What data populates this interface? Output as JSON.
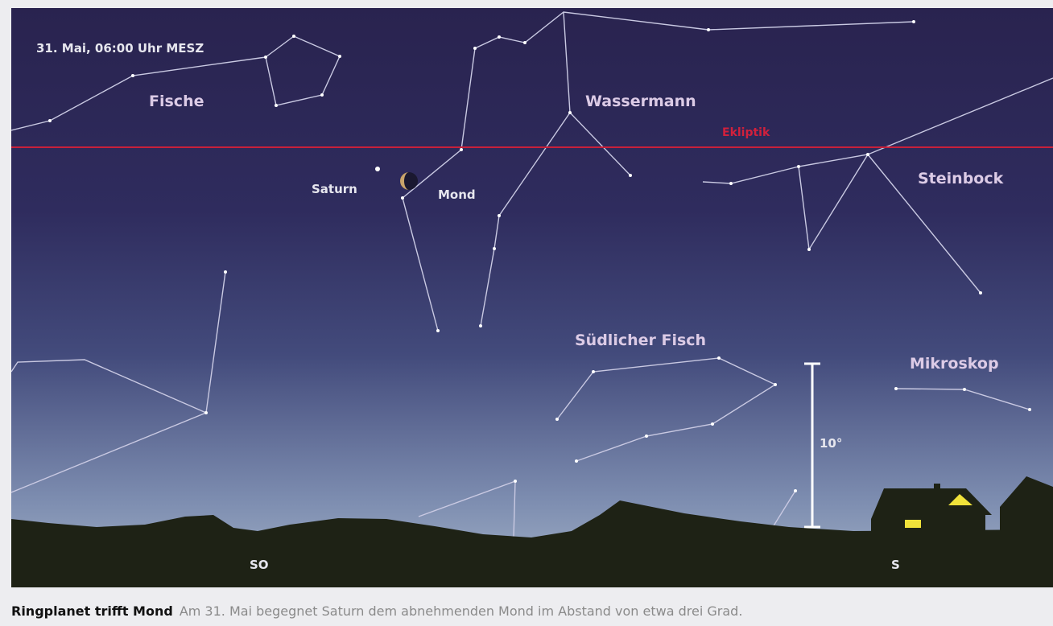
{
  "image": {
    "timestamp": "31. Mai, 06:00 Uhr MESZ",
    "constellations": [
      "Fische",
      "Wassermann",
      "Steinbock",
      "Südlicher Fisch",
      "Mikroskop"
    ],
    "ecliptic": "Ekliptik",
    "objects": [
      "Saturn",
      "Mond"
    ],
    "scale": "10°",
    "directions": [
      "SO",
      "S"
    ]
  },
  "caption": {
    "title": "Ringplanet trifft Mond",
    "text": "Am 31. Mai begegnet Saturn dem abnehmenden Mond im Abstand von etwa drei Grad."
  }
}
